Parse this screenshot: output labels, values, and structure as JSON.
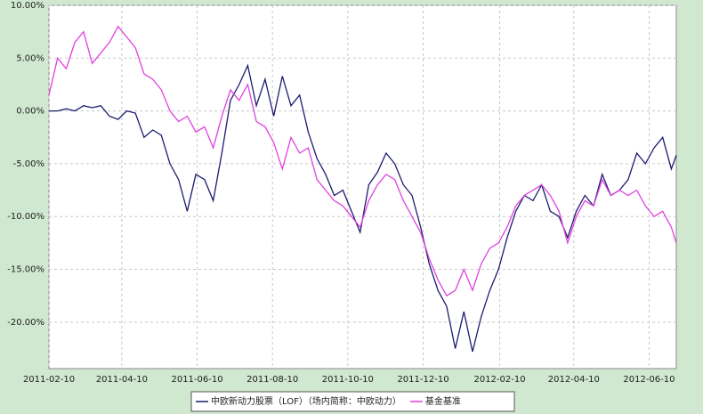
{
  "chart_data": {
    "type": "line",
    "x": [
      "2011-02-10",
      "2011-02-17",
      "2011-02-24",
      "2011-03-03",
      "2011-03-10",
      "2011-03-17",
      "2011-03-24",
      "2011-03-31",
      "2011-04-07",
      "2011-04-14",
      "2011-04-21",
      "2011-04-28",
      "2011-05-05",
      "2011-05-12",
      "2011-05-19",
      "2011-05-26",
      "2011-06-02",
      "2011-06-09",
      "2011-06-16",
      "2011-06-23",
      "2011-06-30",
      "2011-07-07",
      "2011-07-14",
      "2011-07-21",
      "2011-07-28",
      "2011-08-04",
      "2011-08-11",
      "2011-08-18",
      "2011-08-25",
      "2011-09-01",
      "2011-09-08",
      "2011-09-15",
      "2011-09-22",
      "2011-09-29",
      "2011-10-06",
      "2011-10-13",
      "2011-10-20",
      "2011-10-27",
      "2011-11-03",
      "2011-11-10",
      "2011-11-17",
      "2011-11-24",
      "2011-12-01",
      "2011-12-08",
      "2011-12-15",
      "2011-12-22",
      "2011-12-29",
      "2012-01-05",
      "2012-01-12",
      "2012-01-19",
      "2012-01-26",
      "2012-02-02",
      "2012-02-09",
      "2012-02-16",
      "2012-02-23",
      "2012-03-01",
      "2012-03-08",
      "2012-03-15",
      "2012-03-22",
      "2012-03-29",
      "2012-04-05",
      "2012-04-12",
      "2012-04-19",
      "2012-04-26",
      "2012-05-03",
      "2012-05-10",
      "2012-05-17",
      "2012-05-24",
      "2012-05-31",
      "2012-06-07",
      "2012-06-14",
      "2012-06-21",
      "2012-06-28",
      "2012-07-02"
    ],
    "series": [
      {
        "name": "中欧新动力股票（LOF）（场内简称：中欧动力）",
        "color": "#1c1c6e",
        "values": [
          0,
          0,
          0.2,
          0,
          0.5,
          0.3,
          0.5,
          -0.5,
          -0.8,
          0,
          -0.2,
          -2.5,
          -1.8,
          -2.3,
          -5,
          -6.5,
          -9.5,
          -6,
          -6.5,
          -8.5,
          -4,
          1,
          2.5,
          4.3,
          0.5,
          3,
          -0.5,
          3.3,
          0.5,
          1.5,
          -2,
          -4.5,
          -6,
          -8,
          -7.5,
          -9.5,
          -11.5,
          -7,
          -5.8,
          -4,
          -5,
          -7,
          -8,
          -11,
          -14.5,
          -17,
          -18.5,
          -22.5,
          -19,
          -22.8,
          -19.5,
          -17,
          -15,
          -12,
          -9.5,
          -8,
          -8.5,
          -7,
          -9.5,
          -10,
          -12,
          -9.5,
          -8,
          -9,
          -6,
          -8,
          -7.5,
          -6.5,
          -4,
          -5,
          -3.5,
          -2.5,
          -5.5,
          -4.2
        ]
      },
      {
        "name": "基金基准",
        "color": "#e040e0",
        "values": [
          1.5,
          5,
          4,
          6.5,
          7.5,
          4.5,
          5.5,
          6.5,
          8,
          7,
          6,
          3.5,
          3,
          2,
          0,
          -1,
          -0.5,
          -2,
          -1.5,
          -3.5,
          -0.5,
          2,
          1,
          2.5,
          -1,
          -1.5,
          -3,
          -5.5,
          -2.5,
          -4,
          -3.5,
          -6.5,
          -7.5,
          -8.5,
          -9,
          -10,
          -11,
          -8.5,
          -7,
          -6,
          -6.5,
          -8.5,
          -10,
          -11.5,
          -14,
          -16,
          -17.5,
          -17,
          -15,
          -17,
          -14.5,
          -13,
          -12.5,
          -11,
          -9,
          -8,
          -7.5,
          -7,
          -8,
          -9.5,
          -12.5,
          -10,
          -8.5,
          -9,
          -6.5,
          -8,
          -7.5,
          -8,
          -7.5,
          -9,
          -10,
          -9.5,
          -11,
          -12.5
        ]
      }
    ],
    "xlim": [
      "2011-02-10",
      "2012-07-02"
    ],
    "xticks": [
      "2011-02-10",
      "2011-04-10",
      "2011-06-10",
      "2011-08-10",
      "2011-10-10",
      "2011-12-10",
      "2012-02-10",
      "2012-04-10",
      "2012-06-10"
    ],
    "ylim": [
      -24.4,
      10
    ],
    "yticks": [
      {
        "value": 10,
        "label": "10.00%"
      },
      {
        "value": 5,
        "label": "5.00%"
      },
      {
        "value": 0,
        "label": "0.00%"
      },
      {
        "value": -5,
        "label": "-5.00%"
      },
      {
        "value": -10,
        "label": "-10.00%"
      },
      {
        "value": -15,
        "label": "-15.00%"
      },
      {
        "value": -20,
        "label": "-20.00%"
      }
    ],
    "grid": true
  }
}
